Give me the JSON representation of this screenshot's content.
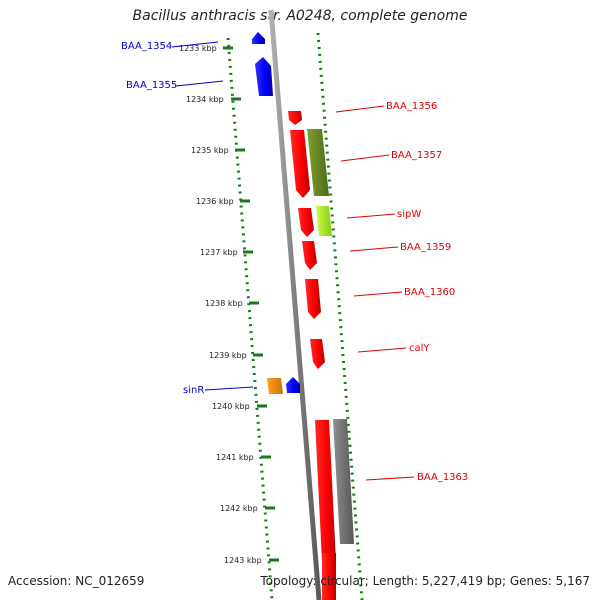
{
  "title": "Bacillus anthracis str. A0248, complete genome",
  "accession": "Accession: NC_012659",
  "summary": "Topology: circular; Length: 5,227,419 bp; Genes: 5,167",
  "ticks": [
    "1233 kbp",
    "1234 kbp",
    "1235 kbp",
    "1236 kbp",
    "1237 kbp",
    "1238 kbp",
    "1239 kbp",
    "1240 kbp",
    "1241 kbp",
    "1242 kbp",
    "1243 kbp"
  ],
  "labels": {
    "BAA_1354": "BAA_1354",
    "BAA_1355": "BAA_1355",
    "BAA_1356": "BAA_1356",
    "BAA_1357": "BAA_1357",
    "sipW": "sipW",
    "BAA_1359": "BAA_1359",
    "BAA_1360": "BAA_1360",
    "calY": "calY",
    "sinR": "sinR",
    "BAA_1363": "BAA_1363"
  },
  "colors": {
    "forward_gene": "#ff0000",
    "reverse_gene": "#0000ff",
    "orange_gene": "#ff8c00",
    "olive_gene": "#6b8e23",
    "lime_gene": "#adff2f",
    "gray_gene": "#707070",
    "backbone": "#888888",
    "dots": "#1a7a1a",
    "blue_label": "#0000cc",
    "red_label": "#dd0000"
  }
}
